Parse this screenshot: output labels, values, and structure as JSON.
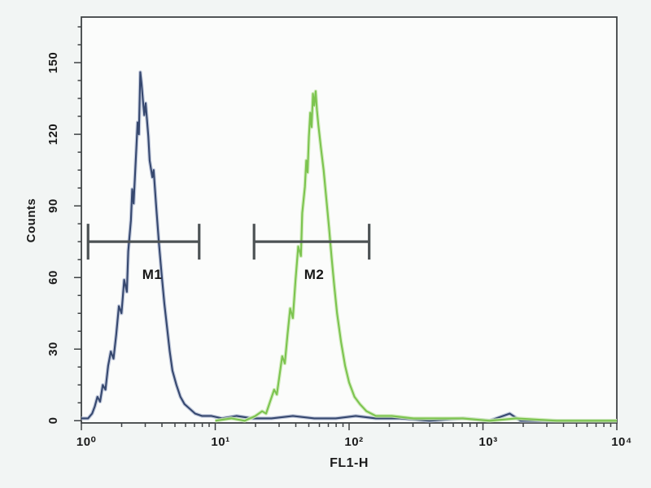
{
  "chart_data": {
    "type": "line",
    "subtype": "flow-cytometry-histogram-overlay",
    "title": "",
    "xlabel": "FL1-H",
    "ylabel": "Counts",
    "x_scale": "log10",
    "xlim": [
      1,
      10000
    ],
    "ylim": [
      0,
      150
    ],
    "grid": false,
    "legend": "none",
    "x_ticks": [
      {
        "log": 0,
        "label": "10⁰"
      },
      {
        "log": 1,
        "label": "10¹"
      },
      {
        "log": 2,
        "label": "10²"
      },
      {
        "log": 3,
        "label": "10³"
      },
      {
        "log": 4,
        "label": "10⁴"
      }
    ],
    "y_ticks": [
      {
        "value": 0,
        "label": "0"
      },
      {
        "value": 30,
        "label": "30"
      },
      {
        "value": 60,
        "label": "60"
      },
      {
        "value": 90,
        "label": "90"
      },
      {
        "value": 120,
        "label": "120"
      },
      {
        "value": 150,
        "label": "150"
      }
    ],
    "series": [
      {
        "name": "blue-population-M1-gate",
        "color": "#36486f",
        "halo": "#b7c1d6",
        "peak": {
          "x": 2.8,
          "counts": 146
        },
        "points_log10x_counts": [
          [
            0.0,
            1
          ],
          [
            0.05,
            1
          ],
          [
            0.08,
            3
          ],
          [
            0.1,
            6
          ],
          [
            0.12,
            10
          ],
          [
            0.14,
            8
          ],
          [
            0.16,
            15
          ],
          [
            0.18,
            13
          ],
          [
            0.2,
            23
          ],
          [
            0.22,
            29
          ],
          [
            0.24,
            26
          ],
          [
            0.26,
            36
          ],
          [
            0.28,
            48
          ],
          [
            0.3,
            45
          ],
          [
            0.32,
            59
          ],
          [
            0.34,
            54
          ],
          [
            0.35,
            71
          ],
          [
            0.37,
            84
          ],
          [
            0.38,
            97
          ],
          [
            0.39,
            91
          ],
          [
            0.41,
            113
          ],
          [
            0.42,
            125
          ],
          [
            0.43,
            120
          ],
          [
            0.44,
            146
          ],
          [
            0.45,
            141
          ],
          [
            0.46,
            134
          ],
          [
            0.47,
            128
          ],
          [
            0.48,
            133
          ],
          [
            0.5,
            119
          ],
          [
            0.51,
            109
          ],
          [
            0.53,
            102
          ],
          [
            0.54,
            105
          ],
          [
            0.56,
            89
          ],
          [
            0.58,
            74
          ],
          [
            0.6,
            61
          ],
          [
            0.62,
            49
          ],
          [
            0.64,
            39
          ],
          [
            0.66,
            29
          ],
          [
            0.68,
            21
          ],
          [
            0.71,
            15
          ],
          [
            0.74,
            10
          ],
          [
            0.77,
            7
          ],
          [
            0.81,
            5
          ],
          [
            0.85,
            3
          ],
          [
            0.9,
            2
          ],
          [
            0.97,
            2
          ],
          [
            1.05,
            1
          ],
          [
            1.16,
            2
          ],
          [
            1.28,
            1
          ],
          [
            1.42,
            1
          ],
          [
            1.58,
            2
          ],
          [
            1.74,
            1
          ],
          [
            1.9,
            1
          ],
          [
            2.05,
            2
          ],
          [
            2.2,
            1
          ],
          [
            2.38,
            1
          ],
          [
            2.6,
            0
          ],
          [
            2.85,
            1
          ],
          [
            3.05,
            0
          ],
          [
            3.2,
            3
          ],
          [
            3.28,
            0
          ],
          [
            3.6,
            0
          ],
          [
            4.0,
            0
          ]
        ]
      },
      {
        "name": "green-population-M2-gate",
        "color": "#7cc44f",
        "halo": "#cdeab6",
        "peak": {
          "x": 56,
          "counts": 138
        },
        "points_log10x_counts": [
          [
            1.0,
            0
          ],
          [
            1.12,
            1
          ],
          [
            1.22,
            0
          ],
          [
            1.3,
            2
          ],
          [
            1.35,
            4
          ],
          [
            1.38,
            3
          ],
          [
            1.41,
            8
          ],
          [
            1.44,
            13
          ],
          [
            1.46,
            11
          ],
          [
            1.48,
            19
          ],
          [
            1.5,
            27
          ],
          [
            1.52,
            24
          ],
          [
            1.54,
            36
          ],
          [
            1.56,
            47
          ],
          [
            1.58,
            43
          ],
          [
            1.6,
            59
          ],
          [
            1.62,
            73
          ],
          [
            1.64,
            69
          ],
          [
            1.65,
            87
          ],
          [
            1.67,
            98
          ],
          [
            1.68,
            109
          ],
          [
            1.69,
            104
          ],
          [
            1.7,
            119
          ],
          [
            1.71,
            129
          ],
          [
            1.72,
            123
          ],
          [
            1.73,
            137
          ],
          [
            1.74,
            132
          ],
          [
            1.75,
            138
          ],
          [
            1.76,
            130
          ],
          [
            1.77,
            124
          ],
          [
            1.79,
            114
          ],
          [
            1.81,
            105
          ],
          [
            1.83,
            93
          ],
          [
            1.85,
            81
          ],
          [
            1.87,
            68
          ],
          [
            1.89,
            56
          ],
          [
            1.91,
            45
          ],
          [
            1.94,
            33
          ],
          [
            1.97,
            23
          ],
          [
            2.0,
            16
          ],
          [
            2.04,
            10
          ],
          [
            2.08,
            7
          ],
          [
            2.13,
            4
          ],
          [
            2.2,
            2
          ],
          [
            2.32,
            2
          ],
          [
            2.48,
            1
          ],
          [
            2.65,
            1
          ],
          [
            2.85,
            1
          ],
          [
            3.05,
            0
          ],
          [
            3.25,
            1
          ],
          [
            3.55,
            0
          ],
          [
            4.0,
            0
          ]
        ]
      }
    ],
    "markers": [
      {
        "label": "M1",
        "range_x": [
          1.1,
          7.6
        ],
        "range_log10": [
          0.05,
          0.88
        ],
        "level_counts": 75
      },
      {
        "label": "M2",
        "range_x": [
          19.5,
          141
        ],
        "range_log10": [
          1.29,
          2.15
        ],
        "level_counts": 75
      }
    ],
    "colors": {
      "axis": "#3f4345",
      "marker_bar": "#4c5254",
      "text": "#1b1b1b",
      "plot_bg": "#fbfcfb",
      "page_bg": "#f2f5f4"
    }
  }
}
